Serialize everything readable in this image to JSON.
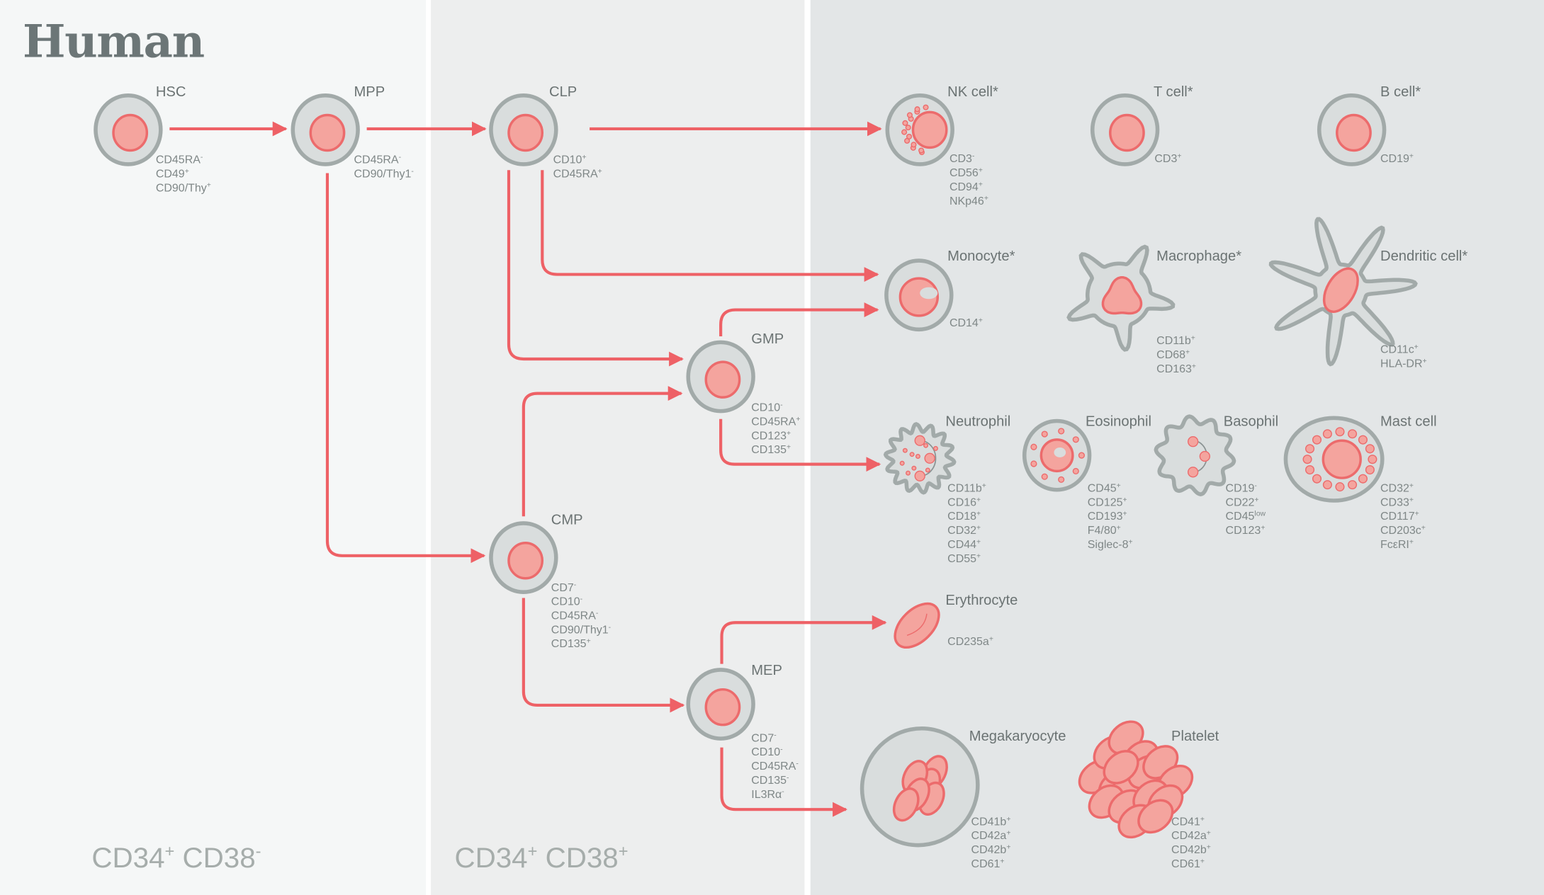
{
  "title": "Human",
  "colors": {
    "arrow": "#ee6166",
    "cytoplasm": "#d9dddd",
    "membrane": "#a2aaa9",
    "nucleus": "#f4a49e",
    "nucleus_edge": "#ec6b6c",
    "panel_1": "#f5f7f7",
    "panel_2": "#edeeee",
    "panel_3": "#e3e6e7"
  },
  "zones": [
    {
      "label": "CD34",
      "sup1": "+",
      "label2": "CD38",
      "sup2": "-"
    },
    {
      "label": "CD34",
      "sup1": "+",
      "label2": "CD38",
      "sup2": "+"
    }
  ],
  "cells": [
    {
      "id": "hsc",
      "name": "HSC",
      "shape": "round",
      "markers": [
        [
          "CD45RA",
          "-"
        ],
        [
          "CD49",
          "+"
        ],
        [
          "CD90/Thy",
          "+"
        ]
      ]
    },
    {
      "id": "mpp",
      "name": "MPP",
      "shape": "round",
      "markers": [
        [
          "CD45RA",
          "-"
        ],
        [
          "CD90/Thy1",
          "-"
        ]
      ]
    },
    {
      "id": "clp",
      "name": "CLP",
      "shape": "round",
      "markers": [
        [
          "CD10",
          "+"
        ],
        [
          "CD45RA",
          "+"
        ]
      ]
    },
    {
      "id": "nk",
      "name": "NK cell*",
      "shape": "nk",
      "markers": [
        [
          "CD3",
          "-"
        ],
        [
          "CD56",
          "+"
        ],
        [
          "CD94",
          "+"
        ],
        [
          "NKp46",
          "+"
        ]
      ]
    },
    {
      "id": "t",
      "name": "T cell*",
      "shape": "round",
      "markers": [
        [
          "CD3",
          "+"
        ]
      ]
    },
    {
      "id": "b",
      "name": "B cell*",
      "shape": "round",
      "markers": [
        [
          "CD19",
          "+"
        ]
      ]
    },
    {
      "id": "mono",
      "name": "Monocyte*",
      "shape": "monocyte",
      "markers": [
        [
          "CD14",
          "+"
        ]
      ]
    },
    {
      "id": "macro",
      "name": "Macrophage*",
      "shape": "macrophage",
      "markers": [
        [
          "CD11b",
          "+"
        ],
        [
          "CD68",
          "+"
        ],
        [
          "CD163",
          "+"
        ]
      ]
    },
    {
      "id": "dc",
      "name": "Dendritic cell*",
      "shape": "dendritic",
      "markers": [
        [
          "CD11c",
          "+"
        ],
        [
          "HLA-DR",
          "+"
        ]
      ]
    },
    {
      "id": "gmp",
      "name": "GMP",
      "shape": "round",
      "markers": [
        [
          "CD10",
          "-"
        ],
        [
          "CD45RA",
          "+"
        ],
        [
          "CD123",
          "+"
        ],
        [
          "CD135",
          "+"
        ]
      ]
    },
    {
      "id": "neut",
      "name": "Neutrophil",
      "shape": "neutrophil",
      "markers": [
        [
          "CD11b",
          "+"
        ],
        [
          "CD16",
          "+"
        ],
        [
          "CD18",
          "+"
        ],
        [
          "CD32",
          "+"
        ],
        [
          "CD44",
          "+"
        ],
        [
          "CD55",
          "+"
        ]
      ]
    },
    {
      "id": "eos",
      "name": "Eosinophil",
      "shape": "eosinophil",
      "markers": [
        [
          "CD45",
          "+"
        ],
        [
          "CD125",
          "+"
        ],
        [
          "CD193",
          "+"
        ],
        [
          "F4/80",
          "+"
        ],
        [
          "Siglec-8",
          "+"
        ]
      ]
    },
    {
      "id": "baso",
      "name": "Basophil",
      "shape": "basophil",
      "markers": [
        [
          "CD19",
          "-"
        ],
        [
          "CD22",
          "+"
        ],
        [
          "CD45",
          "low"
        ],
        [
          "CD123",
          "+"
        ]
      ]
    },
    {
      "id": "mast",
      "name": "Mast cell",
      "shape": "mast",
      "markers": [
        [
          "CD32",
          "+"
        ],
        [
          "CD33",
          "+"
        ],
        [
          "CD117",
          "+"
        ],
        [
          "CD203c",
          "+"
        ],
        [
          "FcεRI",
          "+"
        ]
      ]
    },
    {
      "id": "cmp",
      "name": "CMP",
      "shape": "round",
      "markers": [
        [
          "CD7",
          "-"
        ],
        [
          "CD10",
          "-"
        ],
        [
          "CD45RA",
          "-"
        ],
        [
          "CD90/Thy1",
          "-"
        ],
        [
          "CD135",
          "+"
        ]
      ]
    },
    {
      "id": "ery",
      "name": "Erythrocyte",
      "shape": "erythrocyte",
      "markers": [
        [
          "CD235a",
          "+"
        ]
      ]
    },
    {
      "id": "mep",
      "name": "MEP",
      "shape": "round",
      "markers": [
        [
          "CD7",
          "-"
        ],
        [
          "CD10",
          "-"
        ],
        [
          "CD45RA",
          "-"
        ],
        [
          "CD135",
          "-"
        ],
        [
          "IL3Rα",
          "-"
        ]
      ]
    },
    {
      "id": "mk",
      "name": "Megakaryocyte",
      "shape": "megakaryocyte",
      "markers": [
        [
          "CD41b",
          "+"
        ],
        [
          "CD42a",
          "+"
        ],
        [
          "CD42b",
          "+"
        ],
        [
          "CD61",
          "+"
        ]
      ]
    },
    {
      "id": "plt",
      "name": "Platelet",
      "shape": "platelet",
      "markers": [
        [
          "CD41",
          "+"
        ],
        [
          "CD42a",
          "+"
        ],
        [
          "CD42b",
          "+"
        ],
        [
          "CD61",
          "+"
        ]
      ]
    }
  ],
  "arrows": [
    {
      "from": "hsc",
      "to": "mpp"
    },
    {
      "from": "mpp",
      "to": "clp"
    },
    {
      "from": "mpp",
      "to": "cmp"
    },
    {
      "from": "clp",
      "to": "nk"
    },
    {
      "from": "clp",
      "to": "mono"
    },
    {
      "from": "clp",
      "to": "gmp"
    },
    {
      "from": "gmp",
      "to": "mono"
    },
    {
      "from": "gmp",
      "to": "neut"
    },
    {
      "from": "cmp",
      "to": "gmp"
    },
    {
      "from": "cmp",
      "to": "mep"
    },
    {
      "from": "mep",
      "to": "ery"
    },
    {
      "from": "mep",
      "to": "mk"
    }
  ]
}
